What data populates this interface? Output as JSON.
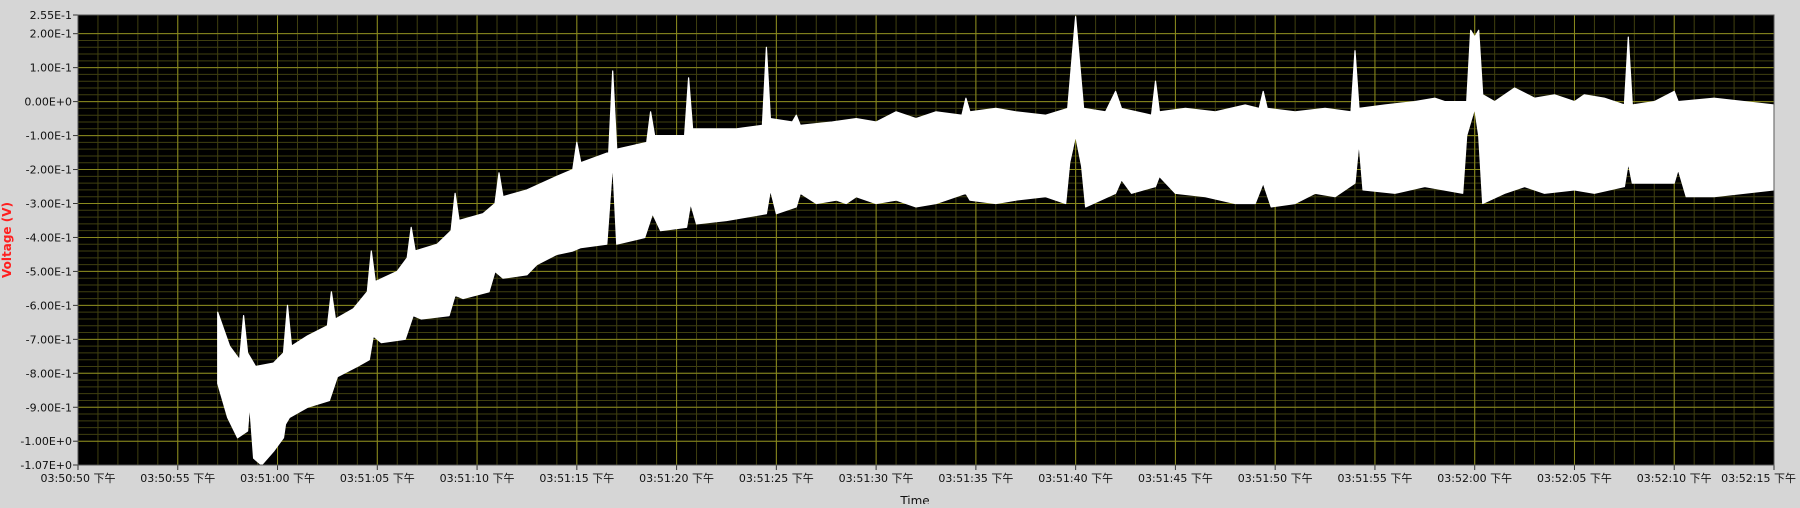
{
  "chart_data": {
    "type": "line",
    "title": "",
    "xlabel": "Time",
    "ylabel": "Voltage (V)",
    "ylim": [
      -1.07,
      0.255
    ],
    "xlim_seconds": [
      0,
      85
    ],
    "grid": true,
    "legend": "none",
    "colors": {
      "background": "#d6d6d6",
      "plot_bg": "#000000",
      "grid_major": "#8a8a1e",
      "grid_minor": "#3f3f10",
      "series": "#ffffff",
      "ylabel": "#ff2020",
      "tick_text": "#111111"
    },
    "y_ticks": [
      {
        "v": 0.255,
        "label": "2.55E-1"
      },
      {
        "v": 0.2,
        "label": "2.00E-1"
      },
      {
        "v": 0.1,
        "label": "1.00E-1"
      },
      {
        "v": 0.0,
        "label": "0.00E+0"
      },
      {
        "v": -0.1,
        "label": "-1.00E-1"
      },
      {
        "v": -0.2,
        "label": "-2.00E-1"
      },
      {
        "v": -0.3,
        "label": "-3.00E-1"
      },
      {
        "v": -0.4,
        "label": "-4.00E-1"
      },
      {
        "v": -0.5,
        "label": "-5.00E-1"
      },
      {
        "v": -0.6,
        "label": "-6.00E-1"
      },
      {
        "v": -0.7,
        "label": "-7.00E-1"
      },
      {
        "v": -0.8,
        "label": "-8.00E-1"
      },
      {
        "v": -0.9,
        "label": "-9.00E-1"
      },
      {
        "v": -1.0,
        "label": "-1.00E+0"
      },
      {
        "v": -1.07,
        "label": "-1.07E+0"
      }
    ],
    "x_ticks": [
      {
        "t": 0,
        "label": "03:50:50 下午"
      },
      {
        "t": 5,
        "label": "03:50:55 下午"
      },
      {
        "t": 10,
        "label": "03:51:00 下午"
      },
      {
        "t": 15,
        "label": "03:51:05 下午"
      },
      {
        "t": 20,
        "label": "03:51:10 下午"
      },
      {
        "t": 25,
        "label": "03:51:15 下午"
      },
      {
        "t": 30,
        "label": "03:51:20 下午"
      },
      {
        "t": 35,
        "label": "03:51:25 下午"
      },
      {
        "t": 40,
        "label": "03:51:30 下午"
      },
      {
        "t": 45,
        "label": "03:51:35 下午"
      },
      {
        "t": 50,
        "label": "03:51:40 下午"
      },
      {
        "t": 55,
        "label": "03:51:45 下午"
      },
      {
        "t": 60,
        "label": "03:51:50 下午"
      },
      {
        "t": 65,
        "label": "03:51:55 下午"
      },
      {
        "t": 70,
        "label": "03:52:00 下午"
      },
      {
        "t": 75,
        "label": "03:52:05 下午"
      },
      {
        "t": 80,
        "label": "03:52:10 下午"
      },
      {
        "t": 85,
        "label": "03:52:15 下午"
      }
    ],
    "series": [
      {
        "envelope_upper": [
          [
            7.0,
            -0.62
          ],
          [
            7.6,
            -0.72
          ],
          [
            8.1,
            -0.76
          ],
          [
            8.3,
            -0.63
          ],
          [
            8.5,
            -0.74
          ],
          [
            8.9,
            -0.78
          ],
          [
            9.8,
            -0.77
          ],
          [
            10.3,
            -0.74
          ],
          [
            10.5,
            -0.6
          ],
          [
            10.7,
            -0.72
          ],
          [
            11.5,
            -0.69
          ],
          [
            12.5,
            -0.66
          ],
          [
            12.7,
            -0.56
          ],
          [
            12.9,
            -0.64
          ],
          [
            13.8,
            -0.61
          ],
          [
            14.5,
            -0.56
          ],
          [
            14.7,
            -0.44
          ],
          [
            14.9,
            -0.53
          ],
          [
            16.0,
            -0.5
          ],
          [
            16.5,
            -0.46
          ],
          [
            16.7,
            -0.37
          ],
          [
            16.9,
            -0.44
          ],
          [
            18.0,
            -0.42
          ],
          [
            18.7,
            -0.38
          ],
          [
            18.9,
            -0.27
          ],
          [
            19.1,
            -0.35
          ],
          [
            20.3,
            -0.33
          ],
          [
            20.9,
            -0.3
          ],
          [
            21.1,
            -0.21
          ],
          [
            21.3,
            -0.28
          ],
          [
            22.5,
            -0.26
          ],
          [
            24.0,
            -0.22
          ],
          [
            24.8,
            -0.2
          ],
          [
            25.0,
            -0.12
          ],
          [
            25.2,
            -0.18
          ],
          [
            26.6,
            -0.15
          ],
          [
            26.8,
            0.09
          ],
          [
            27.0,
            -0.14
          ],
          [
            28.5,
            -0.12
          ],
          [
            28.7,
            -0.03
          ],
          [
            28.9,
            -0.1
          ],
          [
            30.4,
            -0.1
          ],
          [
            30.6,
            0.07
          ],
          [
            30.8,
            -0.08
          ],
          [
            33.0,
            -0.08
          ],
          [
            34.3,
            -0.07
          ],
          [
            34.5,
            0.16
          ],
          [
            34.7,
            -0.05
          ],
          [
            35.8,
            -0.06
          ],
          [
            36.0,
            -0.04
          ],
          [
            36.2,
            -0.07
          ],
          [
            37.8,
            -0.06
          ],
          [
            39.0,
            -0.05
          ],
          [
            40.0,
            -0.06
          ],
          [
            41.0,
            -0.03
          ],
          [
            42.0,
            -0.05
          ],
          [
            43.0,
            -0.03
          ],
          [
            44.3,
            -0.04
          ],
          [
            44.5,
            0.01
          ],
          [
            44.7,
            -0.03
          ],
          [
            46.0,
            -0.02
          ],
          [
            47.0,
            -0.03
          ],
          [
            48.5,
            -0.04
          ],
          [
            49.6,
            -0.02
          ],
          [
            50.0,
            0.25
          ],
          [
            50.4,
            -0.02
          ],
          [
            51.5,
            -0.03
          ],
          [
            52.0,
            0.03
          ],
          [
            52.3,
            -0.02
          ],
          [
            53.8,
            -0.04
          ],
          [
            54.0,
            0.06
          ],
          [
            54.2,
            -0.03
          ],
          [
            55.5,
            -0.02
          ],
          [
            57.0,
            -0.03
          ],
          [
            58.5,
            -0.01
          ],
          [
            59.2,
            -0.02
          ],
          [
            59.4,
            0.03
          ],
          [
            59.6,
            -0.02
          ],
          [
            61.0,
            -0.03
          ],
          [
            62.5,
            -0.02
          ],
          [
            63.8,
            -0.03
          ],
          [
            64.0,
            0.15
          ],
          [
            64.2,
            -0.02
          ],
          [
            65.5,
            -0.01
          ],
          [
            67.0,
            0.0
          ],
          [
            68.0,
            0.01
          ],
          [
            68.5,
            0.0
          ],
          [
            69.6,
            0.0
          ],
          [
            69.8,
            0.21
          ],
          [
            70.0,
            0.19
          ],
          [
            70.2,
            0.21
          ],
          [
            70.4,
            0.02
          ],
          [
            71.0,
            0.0
          ],
          [
            72.0,
            0.04
          ],
          [
            73.0,
            0.01
          ],
          [
            74.0,
            0.02
          ],
          [
            75.0,
            0.0
          ],
          [
            75.5,
            0.02
          ],
          [
            76.5,
            0.01
          ],
          [
            77.5,
            -0.01
          ],
          [
            77.7,
            0.19
          ],
          [
            77.9,
            -0.01
          ],
          [
            79.0,
            0.0
          ],
          [
            80.0,
            0.03
          ],
          [
            80.2,
            0.0
          ],
          [
            82.0,
            0.01
          ],
          [
            83.5,
            0.0
          ],
          [
            85.0,
            -0.01
          ]
        ],
        "envelope_lower": [
          [
            7.0,
            -0.83
          ],
          [
            7.5,
            -0.93
          ],
          [
            8.0,
            -0.99
          ],
          [
            8.5,
            -0.97
          ],
          [
            8.6,
            -0.89
          ],
          [
            8.8,
            -1.05
          ],
          [
            9.2,
            -1.07
          ],
          [
            9.8,
            -1.03
          ],
          [
            10.3,
            -0.99
          ],
          [
            10.4,
            -0.95
          ],
          [
            10.6,
            -0.93
          ],
          [
            11.5,
            -0.9
          ],
          [
            12.6,
            -0.88
          ],
          [
            13.0,
            -0.81
          ],
          [
            14.0,
            -0.78
          ],
          [
            14.6,
            -0.76
          ],
          [
            14.8,
            -0.69
          ],
          [
            15.2,
            -0.71
          ],
          [
            16.4,
            -0.7
          ],
          [
            16.8,
            -0.63
          ],
          [
            17.2,
            -0.64
          ],
          [
            18.6,
            -0.63
          ],
          [
            18.9,
            -0.57
          ],
          [
            19.3,
            -0.58
          ],
          [
            20.6,
            -0.56
          ],
          [
            20.9,
            -0.5
          ],
          [
            21.3,
            -0.52
          ],
          [
            22.5,
            -0.51
          ],
          [
            23.0,
            -0.48
          ],
          [
            24.0,
            -0.45
          ],
          [
            24.8,
            -0.44
          ],
          [
            25.2,
            -0.43
          ],
          [
            26.5,
            -0.42
          ],
          [
            26.8,
            -0.18
          ],
          [
            27.0,
            -0.42
          ],
          [
            28.4,
            -0.4
          ],
          [
            28.8,
            -0.33
          ],
          [
            29.2,
            -0.38
          ],
          [
            30.5,
            -0.37
          ],
          [
            30.7,
            -0.3
          ],
          [
            31.0,
            -0.36
          ],
          [
            32.5,
            -0.35
          ],
          [
            34.5,
            -0.33
          ],
          [
            34.7,
            -0.26
          ],
          [
            35.0,
            -0.33
          ],
          [
            36.0,
            -0.31
          ],
          [
            36.2,
            -0.27
          ],
          [
            37.0,
            -0.3
          ],
          [
            38.0,
            -0.29
          ],
          [
            38.5,
            -0.3
          ],
          [
            39.0,
            -0.28
          ],
          [
            40.0,
            -0.3
          ],
          [
            41.0,
            -0.29
          ],
          [
            42.0,
            -0.31
          ],
          [
            43.0,
            -0.3
          ],
          [
            44.5,
            -0.27
          ],
          [
            44.7,
            -0.29
          ],
          [
            46.0,
            -0.3
          ],
          [
            47.0,
            -0.29
          ],
          [
            48.5,
            -0.28
          ],
          [
            49.5,
            -0.3
          ],
          [
            49.7,
            -0.18
          ],
          [
            50.0,
            -0.1
          ],
          [
            50.3,
            -0.19
          ],
          [
            50.5,
            -0.31
          ],
          [
            52.0,
            -0.27
          ],
          [
            52.3,
            -0.23
          ],
          [
            52.8,
            -0.27
          ],
          [
            54.0,
            -0.25
          ],
          [
            54.2,
            -0.22
          ],
          [
            55.0,
            -0.27
          ],
          [
            56.5,
            -0.28
          ],
          [
            58.0,
            -0.3
          ],
          [
            59.0,
            -0.3
          ],
          [
            59.4,
            -0.24
          ],
          [
            59.8,
            -0.31
          ],
          [
            61.0,
            -0.3
          ],
          [
            62.0,
            -0.27
          ],
          [
            63.0,
            -0.28
          ],
          [
            64.0,
            -0.24
          ],
          [
            64.2,
            -0.12
          ],
          [
            64.4,
            -0.26
          ],
          [
            66.0,
            -0.27
          ],
          [
            67.5,
            -0.25
          ],
          [
            69.4,
            -0.27
          ],
          [
            69.6,
            -0.1
          ],
          [
            70.0,
            -0.02
          ],
          [
            70.2,
            -0.1
          ],
          [
            70.4,
            -0.3
          ],
          [
            71.5,
            -0.27
          ],
          [
            72.5,
            -0.25
          ],
          [
            73.5,
            -0.27
          ],
          [
            75.0,
            -0.26
          ],
          [
            76.0,
            -0.27
          ],
          [
            77.5,
            -0.25
          ],
          [
            77.7,
            -0.18
          ],
          [
            77.9,
            -0.24
          ],
          [
            79.0,
            -0.24
          ],
          [
            80.0,
            -0.24
          ],
          [
            80.2,
            -0.2
          ],
          [
            80.6,
            -0.28
          ],
          [
            82.0,
            -0.28
          ],
          [
            83.5,
            -0.27
          ],
          [
            85.0,
            -0.26
          ]
        ]
      }
    ]
  }
}
